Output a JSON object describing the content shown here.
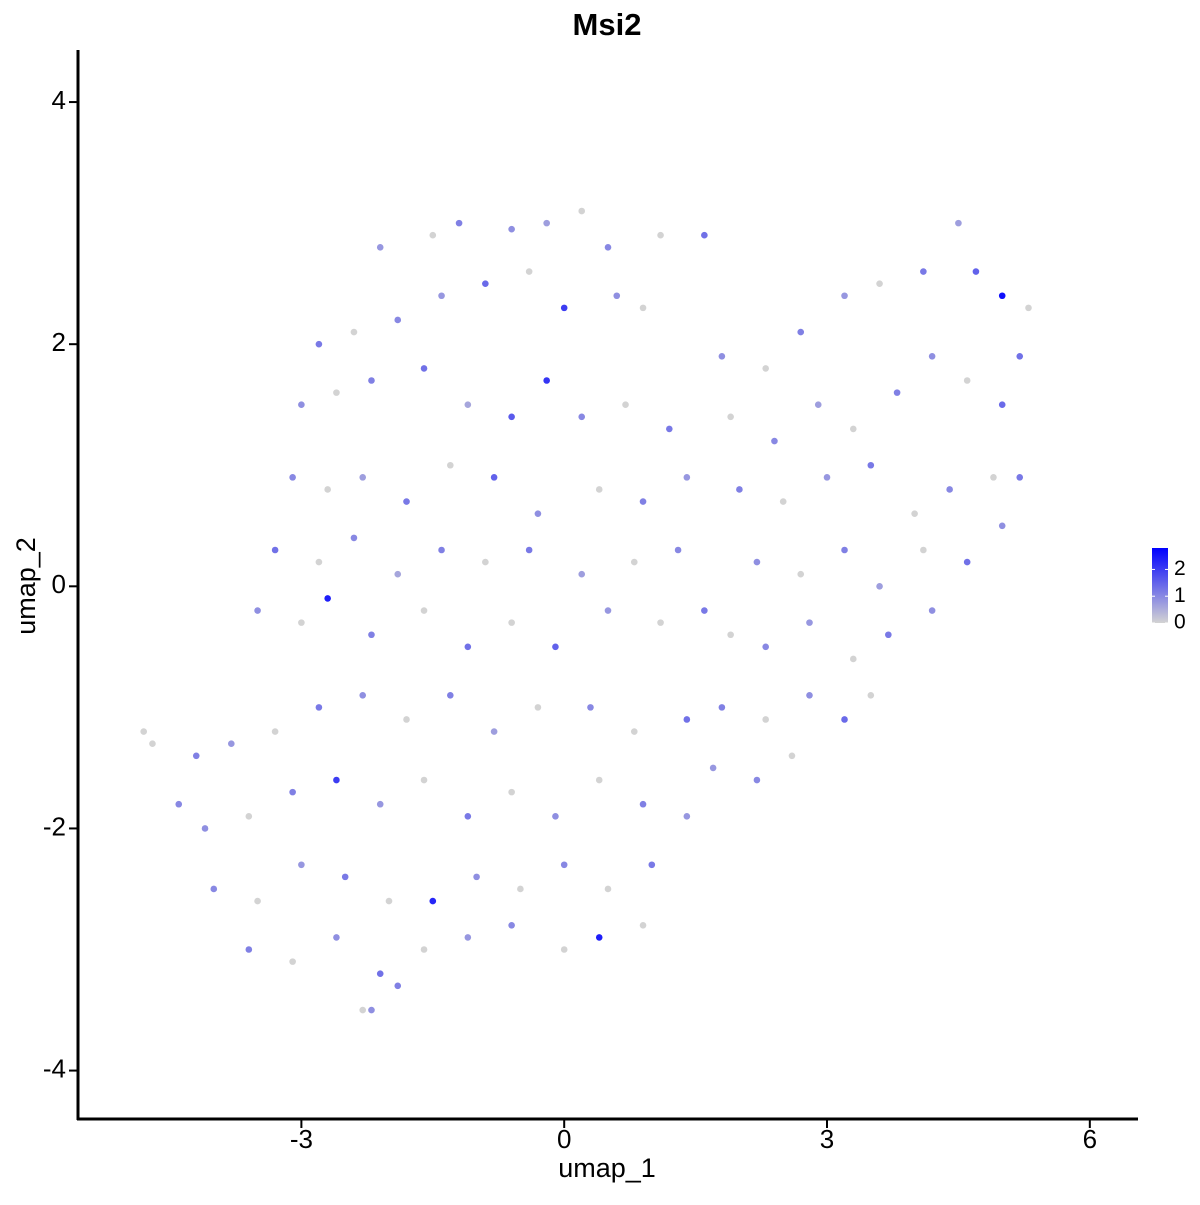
{
  "chart_data": {
    "type": "scatter",
    "title": "Msi2",
    "x_label": "umap_1",
    "y_label": "umap_2",
    "xlim": [
      -5.55,
      6.55
    ],
    "ylim": [
      -4.4,
      4.43
    ],
    "xticks": [
      -3,
      0,
      3,
      6
    ],
    "yticks": [
      -4,
      -2,
      0,
      2,
      4
    ],
    "x": [
      -2.1,
      -1.5,
      -1.2,
      -0.6,
      -0.2,
      0.2,
      0.5,
      1.1,
      1.6,
      -2.8,
      -2.4,
      -1.9,
      -1.4,
      -0.9,
      -0.4,
      0.0,
      0.6,
      0.9,
      -3.0,
      -2.6,
      -2.2,
      -1.6,
      -1.1,
      -0.6,
      -0.2,
      0.2,
      0.7,
      1.2,
      -3.1,
      -2.7,
      -2.3,
      -1.8,
      -1.3,
      -0.8,
      -0.3,
      0.4,
      0.9,
      1.4,
      -3.3,
      -2.8,
      -2.4,
      -1.9,
      -1.4,
      -0.9,
      -0.4,
      0.2,
      0.8,
      1.3,
      -3.5,
      -3.0,
      -2.7,
      -2.2,
      -1.6,
      -1.1,
      -0.6,
      -0.1,
      0.5,
      1.1,
      1.6,
      1.8,
      2.3,
      2.7,
      3.2,
      3.6,
      4.1,
      4.5,
      4.7,
      5.0,
      5.3,
      5.2,
      1.9,
      2.4,
      2.9,
      3.3,
      3.8,
      4.2,
      4.6,
      5.0,
      2.0,
      2.5,
      3.0,
      3.5,
      4.0,
      4.4,
      4.9,
      5.2,
      2.2,
      2.7,
      3.2,
      3.6,
      4.1,
      4.6,
      5.0,
      1.9,
      2.3,
      2.8,
      3.3,
      3.7,
      4.2,
      1.8,
      2.3,
      2.8,
      3.2,
      3.5,
      1.7,
      2.2,
      2.6,
      -4.8,
      -4.7,
      -4.4,
      -4.2,
      -3.8,
      -3.3,
      -2.8,
      -2.3,
      -1.8,
      -1.3,
      -0.8,
      -0.3,
      0.3,
      0.8,
      1.4,
      -4.1,
      -3.6,
      -3.1,
      -2.6,
      -2.1,
      -1.6,
      -1.1,
      -0.6,
      -0.1,
      0.4,
      0.9,
      1.4,
      -4.0,
      -3.5,
      -3.0,
      -2.5,
      -2.0,
      -1.5,
      -1.0,
      -0.5,
      0.0,
      0.5,
      1.0,
      -3.6,
      -3.1,
      -2.6,
      -2.1,
      -1.6,
      -1.1,
      -0.6,
      0.0,
      0.4,
      0.9,
      -2.3,
      -2.2,
      -1.9
    ],
    "y": [
      2.8,
      2.9,
      3.0,
      2.95,
      3.0,
      3.1,
      2.8,
      2.9,
      2.9,
      2.0,
      2.1,
      2.2,
      2.4,
      2.5,
      2.6,
      2.3,
      2.4,
      2.3,
      1.5,
      1.6,
      1.7,
      1.8,
      1.5,
      1.4,
      1.7,
      1.4,
      1.5,
      1.3,
      0.9,
      0.8,
      0.9,
      0.7,
      1.0,
      0.9,
      0.6,
      0.8,
      0.7,
      0.9,
      0.3,
      0.2,
      0.4,
      0.1,
      0.3,
      0.2,
      0.3,
      0.1,
      0.2,
      0.3,
      -0.2,
      -0.3,
      -0.1,
      -0.4,
      -0.2,
      -0.5,
      -0.3,
      -0.5,
      -0.2,
      -0.3,
      -0.2,
      1.9,
      1.8,
      2.1,
      2.4,
      2.5,
      2.6,
      3.0,
      2.6,
      2.4,
      2.3,
      1.9,
      1.4,
      1.2,
      1.5,
      1.3,
      1.6,
      1.9,
      1.7,
      1.5,
      0.8,
      0.7,
      0.9,
      1.0,
      0.6,
      0.8,
      0.9,
      0.9,
      0.2,
      0.1,
      0.3,
      0.0,
      0.3,
      0.2,
      0.5,
      -0.4,
      -0.5,
      -0.3,
      -0.6,
      -0.4,
      -0.2,
      -1.0,
      -1.1,
      -0.9,
      -1.1,
      -0.9,
      -1.5,
      -1.6,
      -1.4,
      -1.2,
      -1.3,
      -1.8,
      -1.4,
      -1.3,
      -1.2,
      -1.0,
      -0.9,
      -1.1,
      -0.9,
      -1.2,
      -1.0,
      -1.0,
      -1.2,
      -1.1,
      -2.0,
      -1.9,
      -1.7,
      -1.6,
      -1.8,
      -1.6,
      -1.9,
      -1.7,
      -1.9,
      -1.6,
      -1.8,
      -1.9,
      -2.5,
      -2.6,
      -2.3,
      -2.4,
      -2.6,
      -2.6,
      -2.4,
      -2.5,
      -2.3,
      -2.5,
      -2.3,
      -3.0,
      -3.1,
      -2.9,
      -3.2,
      -3.0,
      -2.9,
      -2.8,
      -3.0,
      -2.9,
      -2.8,
      -3.5,
      -3.5,
      -3.3
    ],
    "values": [
      0.8,
      0,
      1.1,
      0.9,
      0.7,
      0,
      1.0,
      0,
      1.3,
      1.2,
      0,
      1.0,
      0.8,
      1.4,
      0,
      2.0,
      0.9,
      0,
      0.9,
      0,
      1.1,
      1.3,
      0.6,
      1.6,
      2.1,
      1.0,
      0,
      1.2,
      1.0,
      0,
      0.7,
      1.2,
      0,
      1.5,
      0.9,
      0,
      1.1,
      0.8,
      1.3,
      0,
      1.0,
      0.6,
      1.1,
      0,
      1.2,
      0.7,
      0,
      1.0,
      0.9,
      0,
      2.4,
      1.1,
      0,
      1.3,
      0,
      1.5,
      0.8,
      0,
      1.2,
      0.9,
      0,
      1.1,
      0.8,
      0,
      1.2,
      0.7,
      1.5,
      2.6,
      0,
      1.3,
      0,
      1.0,
      0.7,
      0,
      1.1,
      0.9,
      0,
      1.4,
      1.1,
      0,
      0.8,
      1.2,
      0,
      1.0,
      0,
      1.2,
      0.9,
      0,
      1.1,
      0.7,
      0,
      1.3,
      0.9,
      0,
      1.0,
      0.8,
      0,
      1.2,
      0.9,
      1.1,
      0,
      0.9,
      1.4,
      0,
      0.8,
      1.0,
      0,
      0,
      0,
      1.0,
      1.1,
      0.8,
      0,
      1.2,
      0.9,
      0,
      1.1,
      0.7,
      0,
      1.0,
      0,
      1.3,
      0.9,
      0,
      1.1,
      2.0,
      0.8,
      0,
      1.2,
      0,
      0.9,
      0,
      1.1,
      0.8,
      1.0,
      0,
      0.8,
      1.2,
      0,
      2.3,
      0.9,
      0,
      1.0,
      0,
      1.2,
      1.1,
      0,
      0.9,
      1.3,
      0,
      0.8,
      1.0,
      0,
      2.4,
      0,
      0,
      0.9,
      1.1
    ],
    "color_scale": {
      "colors": [
        "#d3d3d3",
        "#0000ff"
      ],
      "lim": [
        0,
        2.8
      ],
      "ticks": [
        0,
        1,
        2
      ]
    }
  }
}
